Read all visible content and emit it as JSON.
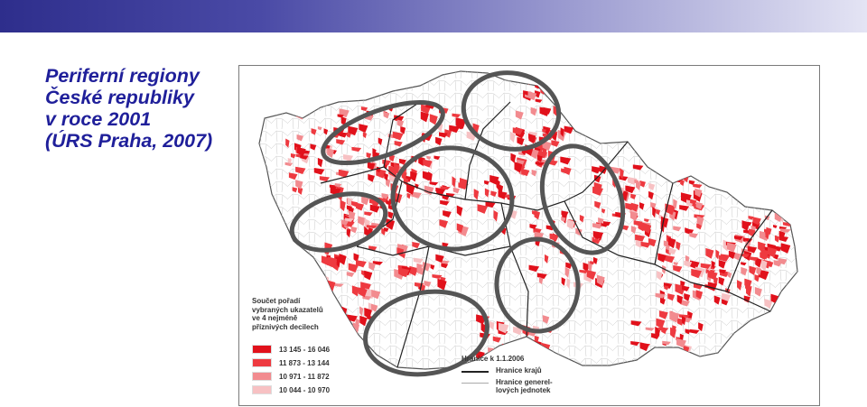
{
  "header": {
    "title_lines": [
      "Periferní regiony",
      "České republiky",
      "v roce 2001",
      "(ÚRS Praha, 2007)"
    ]
  },
  "colors": {
    "title": "#1f1f9a",
    "class1": "#e1111b",
    "class2": "#ee3a40",
    "class3": "#f28b8f",
    "class4": "#f7c1c3",
    "ellipse": "#555555"
  },
  "map": {
    "legend": {
      "title_lines": [
        "Součet pořadí",
        "vybraných ukazatelů",
        "ve 4 nejméně",
        "příznivých decilech"
      ],
      "classes": [
        {
          "label": "13 145 - 16 046",
          "color": "#e1111b"
        },
        {
          "label": "11 873 - 13 144",
          "color": "#ee3a40"
        },
        {
          "label": "10 971 - 11 872",
          "color": "#f28b8f"
        },
        {
          "label": "10 044 - 10 970",
          "color": "#f7c1c3"
        }
      ]
    },
    "boundaries": {
      "heading": "Hranice k 1.1.2006",
      "regions": "Hranice krajů",
      "units_line1": "Hranice generel-",
      "units_line2": "lových jednotek"
    }
  }
}
